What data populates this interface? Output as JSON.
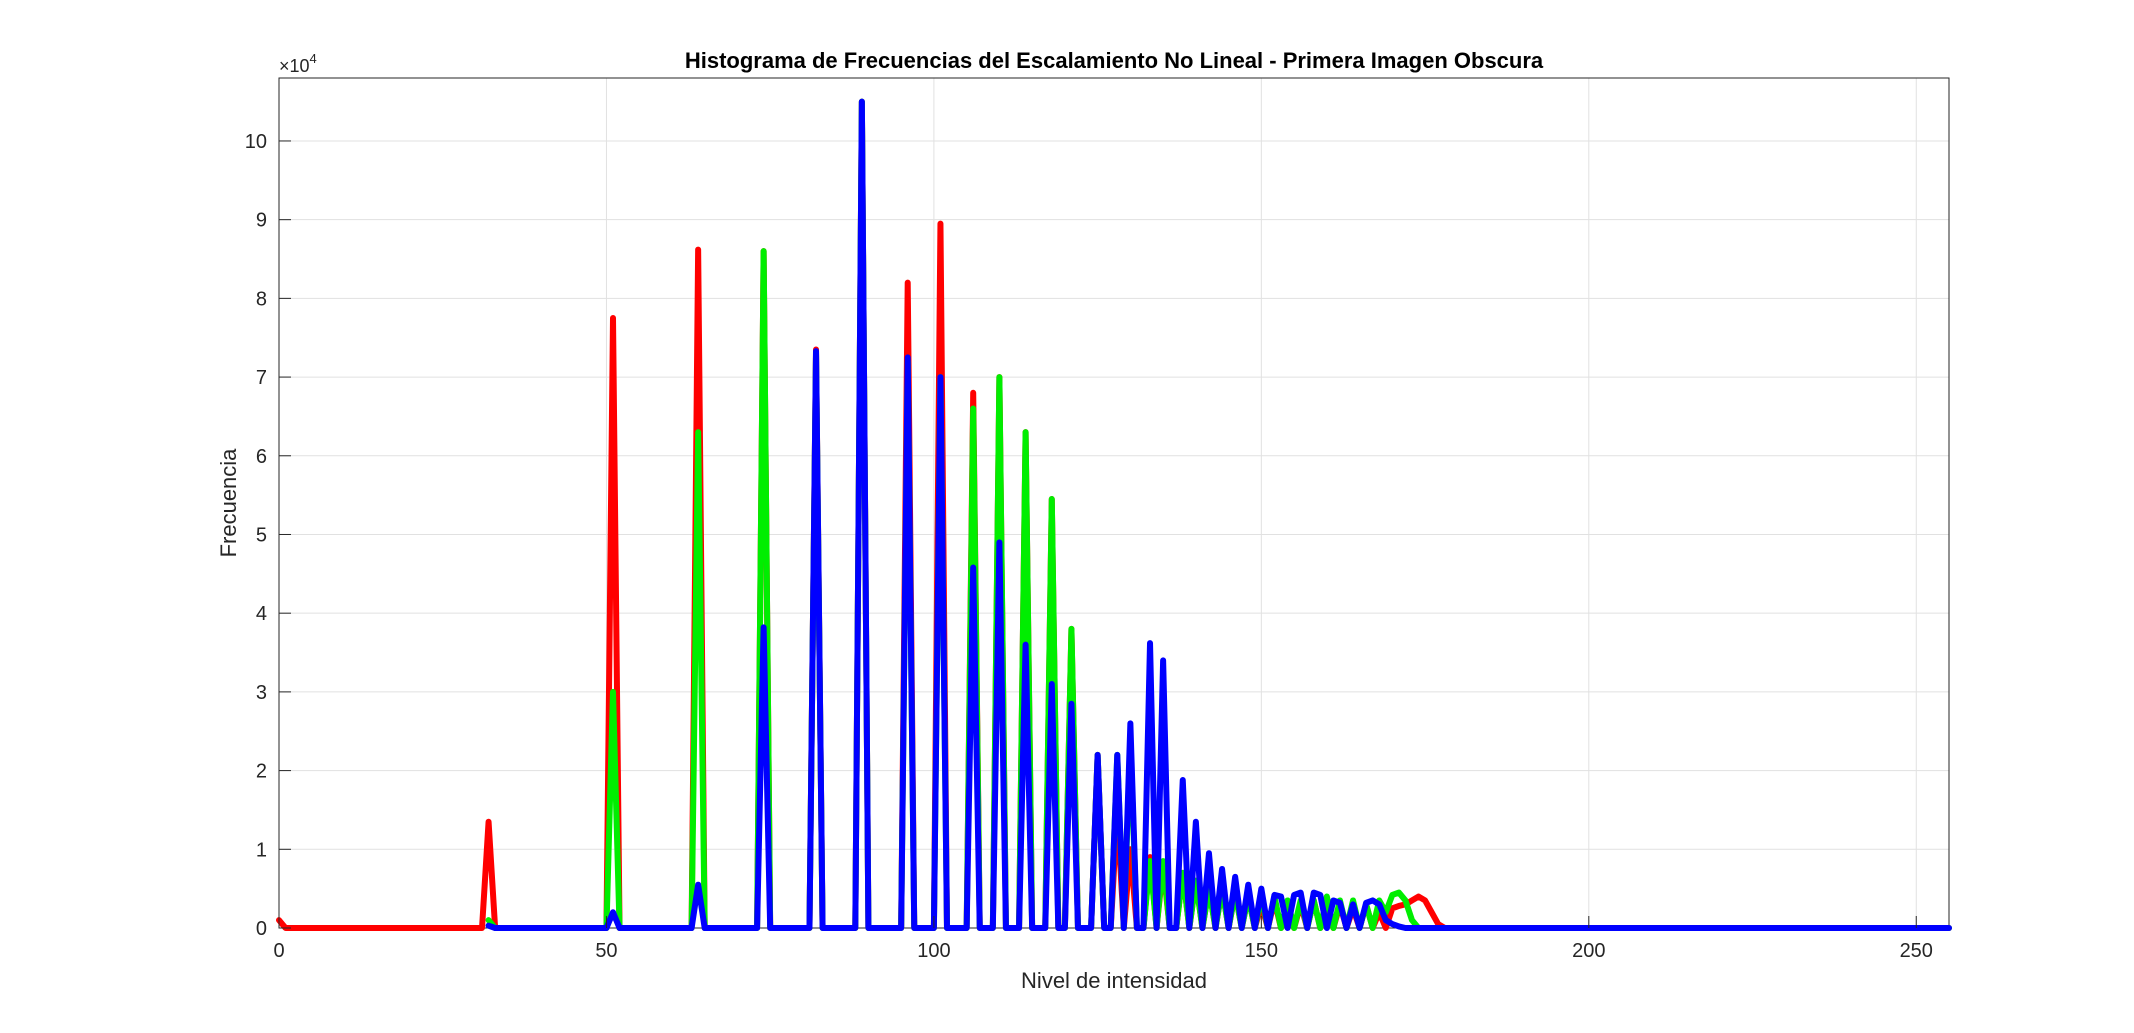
{
  "chart_data": {
    "type": "line",
    "title": "Histograma de Frecuencias del Escalamiento No Lineal - Primera Imagen Obscura",
    "xlabel": "Nivel de intensidad",
    "ylabel": "Frecuencia",
    "xlim": [
      0,
      255
    ],
    "ylim": [
      0,
      10.8
    ],
    "y_scale_label": "×10",
    "y_scale_exponent": "4",
    "xticks": [
      "0",
      "50",
      "100",
      "150",
      "200",
      "250"
    ],
    "xtick_values": [
      0,
      50,
      100,
      150,
      200,
      250
    ],
    "yticks": [
      "0",
      "1",
      "2",
      "3",
      "4",
      "5",
      "6",
      "7",
      "8",
      "9",
      "10"
    ],
    "ytick_values": [
      0,
      1,
      2,
      3,
      4,
      5,
      6,
      7,
      8,
      9,
      10
    ],
    "grid": true,
    "series": [
      {
        "color": "#ff0000",
        "baseline": 0,
        "points": [
          [
            0,
            0.1
          ],
          [
            1,
            0
          ],
          [
            32,
            1.35
          ],
          [
            51,
            7.75
          ],
          [
            64,
            8.62
          ],
          [
            74,
            8.6
          ],
          [
            82,
            7.35
          ],
          [
            89,
            10.5
          ],
          [
            96,
            8.2
          ],
          [
            101,
            8.95
          ],
          [
            106,
            6.8
          ],
          [
            110,
            7.0
          ],
          [
            114,
            6.3
          ],
          [
            118,
            5.45
          ],
          [
            121,
            3.8
          ],
          [
            125,
            2.2
          ],
          [
            128,
            1.5
          ],
          [
            130,
            1.0
          ],
          [
            133,
            0.9
          ],
          [
            135,
            0.8
          ],
          [
            138,
            0.7
          ],
          [
            140,
            0.6
          ],
          [
            142,
            0.5
          ],
          [
            144,
            0.5
          ],
          [
            146,
            0.45
          ],
          [
            148,
            0.4
          ],
          [
            150,
            0.3
          ],
          [
            152,
            0.35
          ],
          [
            154,
            0.3
          ],
          [
            156,
            0.3
          ],
          [
            158,
            0.35
          ],
          [
            160,
            0.3
          ],
          [
            162,
            0.3
          ],
          [
            164,
            0.25
          ],
          [
            166,
            0.3
          ],
          [
            168,
            0.2
          ],
          [
            170,
            0.25
          ],
          [
            171,
            0.28
          ],
          [
            172,
            0.3
          ],
          [
            173,
            0.35
          ],
          [
            174,
            0.4
          ],
          [
            175,
            0.35
          ],
          [
            176,
            0.2
          ],
          [
            177,
            0.05
          ],
          [
            178,
            0
          ],
          [
            255,
            0
          ]
        ]
      },
      {
        "color": "#00ee00",
        "baseline": 0,
        "points": [
          [
            32,
            0.1
          ],
          [
            51,
            3.0
          ],
          [
            64,
            6.3
          ],
          [
            74,
            8.6
          ],
          [
            82,
            7.3
          ],
          [
            89,
            10.5
          ],
          [
            96,
            7.2
          ],
          [
            101,
            7.0
          ],
          [
            106,
            6.6
          ],
          [
            110,
            7.0
          ],
          [
            114,
            6.3
          ],
          [
            118,
            5.45
          ],
          [
            121,
            3.8
          ],
          [
            125,
            2.2
          ],
          [
            128,
            2.2
          ],
          [
            130,
            2.4
          ],
          [
            133,
            0.85
          ],
          [
            135,
            0.85
          ],
          [
            138,
            0.7
          ],
          [
            140,
            0.6
          ],
          [
            142,
            0.5
          ],
          [
            144,
            0.5
          ],
          [
            146,
            0.45
          ],
          [
            148,
            0.4
          ],
          [
            150,
            0.4
          ],
          [
            152,
            0.4
          ],
          [
            154,
            0.35
          ],
          [
            156,
            0.35
          ],
          [
            158,
            0.35
          ],
          [
            160,
            0.4
          ],
          [
            162,
            0.35
          ],
          [
            164,
            0.35
          ],
          [
            166,
            0.3
          ],
          [
            168,
            0.35
          ],
          [
            169,
            0.2
          ],
          [
            170,
            0.42
          ],
          [
            171,
            0.45
          ],
          [
            172,
            0.35
          ],
          [
            173,
            0.1
          ],
          [
            174,
            0
          ],
          [
            255,
            0
          ]
        ]
      },
      {
        "color": "#0000ff",
        "baseline": 0,
        "points": [
          [
            32,
            0.03
          ],
          [
            51,
            0.2
          ],
          [
            64,
            0.55
          ],
          [
            74,
            3.82
          ],
          [
            82,
            7.33
          ],
          [
            89,
            10.5
          ],
          [
            96,
            7.25
          ],
          [
            101,
            7.0
          ],
          [
            106,
            4.58
          ],
          [
            110,
            4.9
          ],
          [
            114,
            3.6
          ],
          [
            118,
            3.1
          ],
          [
            121,
            2.85
          ],
          [
            125,
            2.2
          ],
          [
            128,
            2.2
          ],
          [
            130,
            2.6
          ],
          [
            133,
            3.62
          ],
          [
            135,
            3.4
          ],
          [
            138,
            1.88
          ],
          [
            140,
            1.35
          ],
          [
            142,
            0.95
          ],
          [
            144,
            0.75
          ],
          [
            146,
            0.65
          ],
          [
            148,
            0.55
          ],
          [
            150,
            0.5
          ],
          [
            152,
            0.42
          ],
          [
            153,
            0.4
          ],
          [
            155,
            0.42
          ],
          [
            156,
            0.45
          ],
          [
            158,
            0.45
          ],
          [
            159,
            0.42
          ],
          [
            161,
            0.35
          ],
          [
            162,
            0.32
          ],
          [
            164,
            0.3
          ],
          [
            166,
            0.32
          ],
          [
            167,
            0.35
          ],
          [
            168,
            0.3
          ],
          [
            169,
            0.1
          ],
          [
            170,
            0.05
          ],
          [
            171,
            0.02
          ],
          [
            172,
            0
          ],
          [
            255,
            0
          ]
        ]
      }
    ]
  }
}
